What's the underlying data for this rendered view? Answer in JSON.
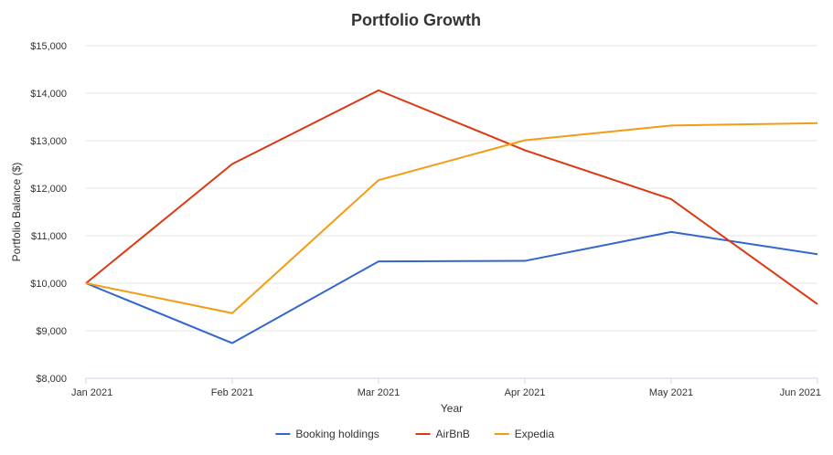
{
  "chart_data": {
    "type": "line",
    "title": "Portfolio Growth",
    "xlabel": "Year",
    "ylabel": "Portfolio Balance ($)",
    "categories": [
      "Jan 2021",
      "Feb 2021",
      "Mar 2021",
      "Apr 2021",
      "May 2021",
      "Jun 2021"
    ],
    "ylim": [
      8000,
      15000
    ],
    "yticks": [
      8000,
      9000,
      10000,
      11000,
      12000,
      13000,
      14000,
      15000
    ],
    "ytick_labels": [
      "$8,000",
      "$9,000",
      "$10,000",
      "$11,000",
      "$12,000",
      "$13,000",
      "$14,000",
      "$15,000"
    ],
    "grid": true,
    "legend_position": "bottom",
    "series": [
      {
        "name": "Booking holdings",
        "color": "#3366cc",
        "values": [
          10000,
          8740,
          10460,
          10470,
          11080,
          10610
        ]
      },
      {
        "name": "AirBnB",
        "color": "#dc3912",
        "values": [
          10000,
          12510,
          14060,
          12800,
          11770,
          9560
        ]
      },
      {
        "name": "Expedia",
        "color": "#f39c12",
        "values": [
          10000,
          9370,
          12170,
          13010,
          13320,
          13370
        ]
      }
    ]
  }
}
